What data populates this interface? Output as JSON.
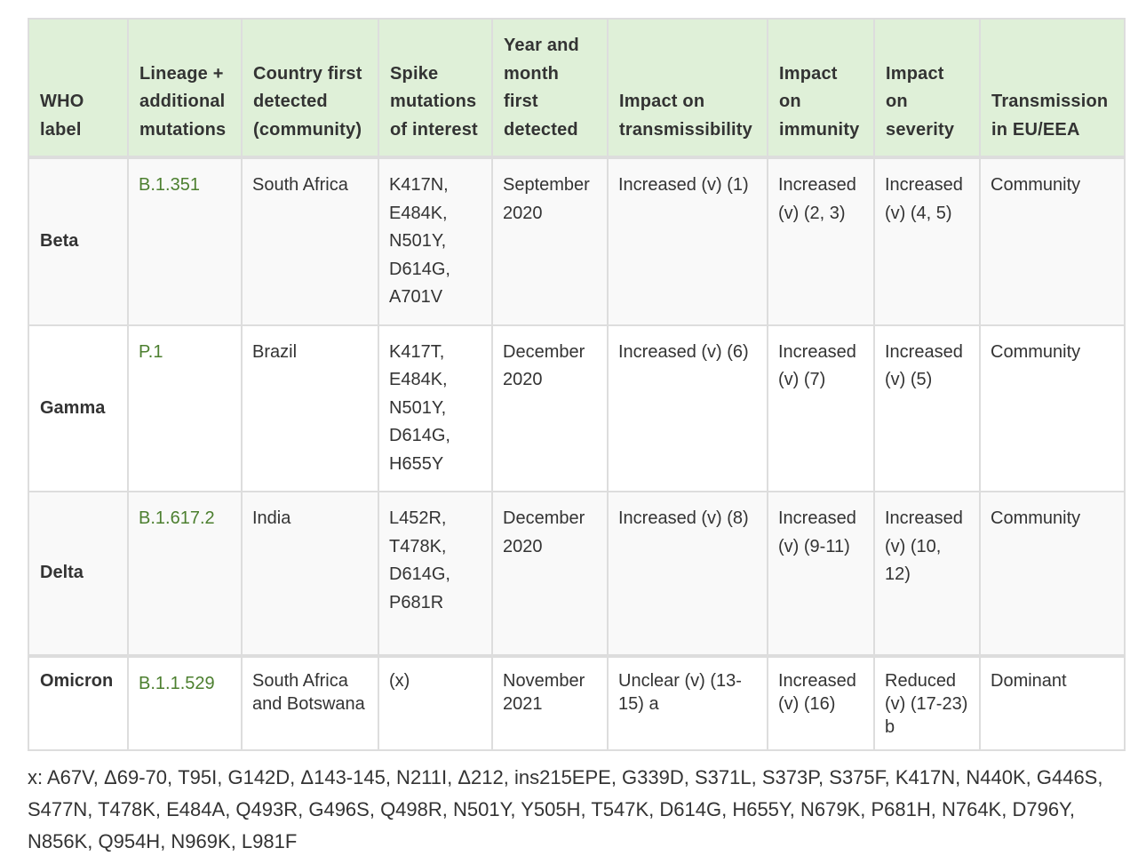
{
  "table": {
    "headers": {
      "who_label": "WHO label",
      "lineage": "Lineage + additional mutations",
      "country": "Country first detected (community)",
      "spike": "Spike mutations of interest",
      "year_month": "Year and month first detected",
      "transmissibility": "Impact on transmissibility",
      "immunity": "Impact on immunity",
      "severity": "Impact on severity",
      "transmission_eu": "Transmission in EU/EEA"
    },
    "rows": [
      {
        "who_label": "Beta",
        "lineage": "B.1.351",
        "country": "South Africa",
        "spike": "K417N, E484K, N501Y, D614G, A701V",
        "year_month": "September 2020",
        "transmissibility": "Increased (v) (1)",
        "immunity": "Increased (v) (2, 3)",
        "severity": "Increased (v) (4, 5)",
        "transmission_eu": "Community"
      },
      {
        "who_label": "Gamma",
        "lineage": "P.1",
        "country": "Brazil",
        "spike": "K417T, E484K, N501Y, D614G, H655Y",
        "year_month": "December 2020",
        "transmissibility": "Increased (v) (6)",
        "immunity": "Increased (v) (7)",
        "severity": "Increased (v) (5)",
        "transmission_eu": "Community"
      },
      {
        "who_label": "Delta",
        "lineage": "B.1.617.2",
        "country": "India",
        "spike": "L452R, T478K, D614G, P681R",
        "year_month": "December 2020",
        "transmissibility": "Increased (v) (8)",
        "immunity": "Increased (v) (9-11)",
        "severity": "Increased (v) (10, 12)",
        "transmission_eu": "Community"
      },
      {
        "who_label": "Omicron",
        "lineage": "B.1.1.529",
        "country": "South Africa and Botswana",
        "spike": "(x)",
        "year_month": "November 2021",
        "transmissibility": "Unclear (v) (13-15) a",
        "immunity": "Increased (v) (16)",
        "severity": "Reduced (v) (17-23) b",
        "transmission_eu": "Dominant"
      }
    ]
  },
  "footnote": "x: A67V, Δ69-70, T95I, G142D, Δ143-145, N211I, Δ212, ins215EPE, G339D, S371L, S373P, S375F, K417N, N440K, G446S, S477N, T478K, E484A, Q493R, G496S, Q498R, N501Y, Y505H, T547K, D614G, H655Y, N679K, P681H, N764K, D796Y, N856K, Q954H, N969K, L981F",
  "colors": {
    "header_bg": "#dff0d8",
    "link": "#4c7f2f",
    "border": "#dddddd",
    "text": "#333333"
  }
}
